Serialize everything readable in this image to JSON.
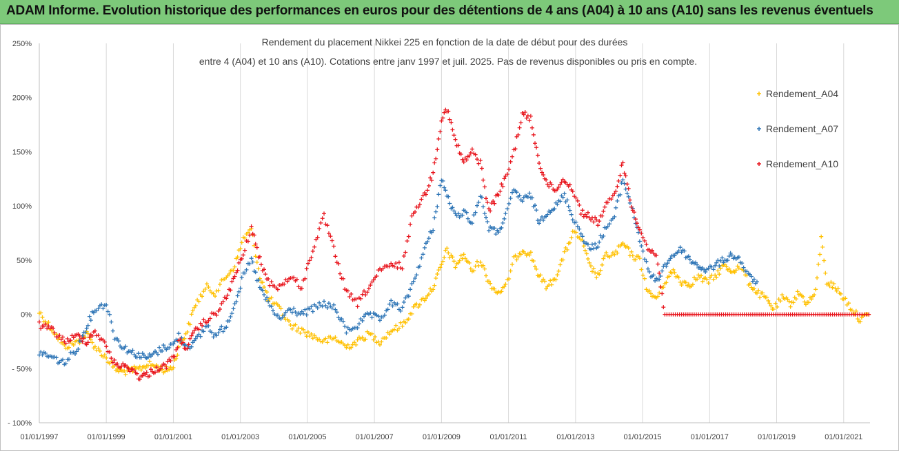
{
  "header": {
    "title": "ADAM Informe. Evolution historique des performances en euros pour des détentions de 4 ans (A04) à 10 ans (A10) sans les revenus éventuels"
  },
  "colors": {
    "header_bg": "#7dc97a",
    "A04": "#ffc000",
    "A07": "#2e75b6",
    "A10": "#e8141c",
    "grid": "#d9d9d9"
  },
  "chart_data": {
    "type": "scatter",
    "title_line1": "Rendement du placement Nikkei 225 en fonction de la date de début pour des durées",
    "title_line2": "entre 4 (A04) et 10 ans (A10). Cotations entre janv 1997 et juil. 2025. Pas de revenus disponibles ou pris en compte.",
    "xlabel": "",
    "ylabel": "",
    "xlim": [
      "1997-01-01",
      "2021-10-15"
    ],
    "ylim": [
      -100,
      250
    ],
    "x_ticks": [
      "01/01/1997",
      "01/01/1999",
      "01/01/2001",
      "01/01/2003",
      "01/01/2005",
      "01/01/2007",
      "01/01/2009",
      "01/01/2011",
      "01/01/2013",
      "01/01/2015",
      "01/01/2017",
      "01/01/2019",
      "01/01/2021"
    ],
    "y_ticks": [
      "- 100%",
      "- 50%",
      "0%",
      "50%",
      "100%",
      "150%",
      "200%",
      "250%"
    ],
    "y_tick_values": [
      -100,
      -50,
      0,
      50,
      100,
      150,
      200,
      250
    ],
    "grid": "vertical gridlines",
    "legend": "right",
    "marker": "+",
    "series": [
      {
        "name": "Rendement_A04",
        "color": "#ffc000",
        "points": [
          [
            "1997-01-01",
            2
          ],
          [
            "1997-06-01",
            -15
          ],
          [
            "1997-10-01",
            -30
          ],
          [
            "1998-03-01",
            -25
          ],
          [
            "1998-06-01",
            -18
          ],
          [
            "1998-09-01",
            -30
          ],
          [
            "1999-01-01",
            -40
          ],
          [
            "1999-04-01",
            -50
          ],
          [
            "1999-07-01",
            -53
          ],
          [
            "1999-10-01",
            -52
          ],
          [
            "2000-01-01",
            -50
          ],
          [
            "2000-04-01",
            -46
          ],
          [
            "2000-07-01",
            -48
          ],
          [
            "2000-10-01",
            -52
          ],
          [
            "2001-01-01",
            -48
          ],
          [
            "2001-03-01",
            -30
          ],
          [
            "2001-06-01",
            -15
          ],
          [
            "2001-09-01",
            10
          ],
          [
            "2002-01-01",
            25
          ],
          [
            "2002-04-01",
            20
          ],
          [
            "2002-08-01",
            35
          ],
          [
            "2002-11-01",
            45
          ],
          [
            "2003-02-01",
            70
          ],
          [
            "2003-05-01",
            78
          ],
          [
            "2003-08-01",
            35
          ],
          [
            "2003-11-01",
            15
          ],
          [
            "2004-03-01",
            5
          ],
          [
            "2004-07-01",
            -10
          ],
          [
            "2004-11-01",
            -15
          ],
          [
            "2005-03-01",
            -20
          ],
          [
            "2005-07-01",
            -25
          ],
          [
            "2005-11-01",
            -22
          ],
          [
            "2006-03-01",
            -30
          ],
          [
            "2006-07-01",
            -25
          ],
          [
            "2006-11-01",
            -18
          ],
          [
            "2007-03-01",
            -25
          ],
          [
            "2007-07-01",
            -15
          ],
          [
            "2007-11-01",
            -10
          ],
          [
            "2008-03-01",
            5
          ],
          [
            "2008-07-01",
            15
          ],
          [
            "2008-10-01",
            25
          ],
          [
            "2009-01-01",
            45
          ],
          [
            "2009-03-01",
            60
          ],
          [
            "2009-06-01",
            45
          ],
          [
            "2009-09-01",
            55
          ],
          [
            "2009-12-01",
            40
          ],
          [
            "2010-03-01",
            50
          ],
          [
            "2010-06-01",
            30
          ],
          [
            "2010-09-01",
            20
          ],
          [
            "2010-12-01",
            25
          ],
          [
            "2011-03-01",
            50
          ],
          [
            "2011-06-01",
            60
          ],
          [
            "2011-09-01",
            55
          ],
          [
            "2011-12-01",
            35
          ],
          [
            "2012-03-01",
            25
          ],
          [
            "2012-06-01",
            35
          ],
          [
            "2012-09-01",
            55
          ],
          [
            "2012-12-01",
            75
          ],
          [
            "2013-03-01",
            70
          ],
          [
            "2013-06-01",
            45
          ],
          [
            "2013-09-01",
            35
          ],
          [
            "2013-12-01",
            55
          ],
          [
            "2014-03-01",
            55
          ],
          [
            "2014-06-01",
            65
          ],
          [
            "2014-09-01",
            55
          ],
          [
            "2014-12-01",
            50
          ],
          [
            "2015-03-01",
            20
          ],
          [
            "2015-06-01",
            15
          ],
          [
            "2015-09-01",
            30
          ],
          [
            "2015-12-01",
            40
          ],
          [
            "2016-03-01",
            30
          ],
          [
            "2016-06-01",
            28
          ],
          [
            "2016-09-01",
            35
          ],
          [
            "2016-12-01",
            30
          ],
          [
            "2017-03-01",
            35
          ],
          [
            "2017-06-01",
            45
          ],
          [
            "2017-09-01",
            40
          ],
          [
            "2017-12-01",
            45
          ],
          [
            "2018-03-01",
            30
          ],
          [
            "2018-06-01",
            20
          ],
          [
            "2018-09-01",
            15
          ],
          [
            "2018-12-01",
            5
          ],
          [
            "2019-03-01",
            15
          ],
          [
            "2019-06-01",
            10
          ],
          [
            "2019-09-01",
            20
          ],
          [
            "2019-12-01",
            10
          ],
          [
            "2020-03-01",
            20
          ],
          [
            "2020-05-01",
            70
          ],
          [
            "2020-07-01",
            30
          ],
          [
            "2020-10-01",
            25
          ],
          [
            "2021-01-01",
            15
          ],
          [
            "2021-04-01",
            5
          ],
          [
            "2021-07-01",
            -5
          ],
          [
            "2021-10-01",
            0
          ]
        ]
      },
      {
        "name": "Rendement_A07",
        "color": "#2e75b6",
        "points": [
          [
            "1997-01-01",
            -35
          ],
          [
            "1997-06-01",
            -40
          ],
          [
            "1997-10-01",
            -45
          ],
          [
            "1998-03-01",
            -30
          ],
          [
            "1998-06-01",
            -10
          ],
          [
            "1998-09-01",
            5
          ],
          [
            "1999-01-01",
            10
          ],
          [
            "1999-04-01",
            -20
          ],
          [
            "1999-07-01",
            -30
          ],
          [
            "1999-10-01",
            -35
          ],
          [
            "2000-01-01",
            -38
          ],
          [
            "2000-04-01",
            -40
          ],
          [
            "2000-07-01",
            -35
          ],
          [
            "2000-10-01",
            -30
          ],
          [
            "2001-01-01",
            -28
          ],
          [
            "2001-03-01",
            -20
          ],
          [
            "2001-06-01",
            -30
          ],
          [
            "2001-09-01",
            -25
          ],
          [
            "2002-01-01",
            -10
          ],
          [
            "2002-04-01",
            -20
          ],
          [
            "2002-08-01",
            -10
          ],
          [
            "2002-11-01",
            10
          ],
          [
            "2003-02-01",
            35
          ],
          [
            "2003-05-01",
            50
          ],
          [
            "2003-08-01",
            25
          ],
          [
            "2003-11-01",
            10
          ],
          [
            "2004-03-01",
            -5
          ],
          [
            "2004-07-01",
            5
          ],
          [
            "2004-11-01",
            0
          ],
          [
            "2005-03-01",
            5
          ],
          [
            "2005-07-01",
            10
          ],
          [
            "2005-11-01",
            5
          ],
          [
            "2006-03-01",
            -15
          ],
          [
            "2006-07-01",
            -10
          ],
          [
            "2006-11-01",
            0
          ],
          [
            "2007-03-01",
            -5
          ],
          [
            "2007-07-01",
            10
          ],
          [
            "2007-11-01",
            5
          ],
          [
            "2008-03-01",
            30
          ],
          [
            "2008-07-01",
            60
          ],
          [
            "2008-10-01",
            80
          ],
          [
            "2009-01-01",
            125
          ],
          [
            "2009-03-01",
            110
          ],
          [
            "2009-06-01",
            90
          ],
          [
            "2009-09-01",
            95
          ],
          [
            "2009-12-01",
            85
          ],
          [
            "2010-03-01",
            110
          ],
          [
            "2010-06-01",
            80
          ],
          [
            "2010-09-01",
            75
          ],
          [
            "2010-12-01",
            90
          ],
          [
            "2011-03-01",
            115
          ],
          [
            "2011-06-01",
            105
          ],
          [
            "2011-09-01",
            110
          ],
          [
            "2011-12-01",
            85
          ],
          [
            "2012-03-01",
            95
          ],
          [
            "2012-06-01",
            100
          ],
          [
            "2012-09-01",
            110
          ],
          [
            "2012-12-01",
            90
          ],
          [
            "2013-03-01",
            75
          ],
          [
            "2013-06-01",
            60
          ],
          [
            "2013-09-01",
            65
          ],
          [
            "2013-12-01",
            80
          ],
          [
            "2014-03-01",
            90
          ],
          [
            "2014-06-01",
            125
          ],
          [
            "2014-09-01",
            100
          ],
          [
            "2014-12-01",
            70
          ],
          [
            "2015-03-01",
            40
          ],
          [
            "2015-06-01",
            30
          ],
          [
            "2015-09-01",
            45
          ],
          [
            "2015-12-01",
            55
          ],
          [
            "2016-03-01",
            60
          ],
          [
            "2016-06-01",
            50
          ],
          [
            "2016-09-01",
            45
          ],
          [
            "2016-12-01",
            40
          ],
          [
            "2017-03-01",
            45
          ],
          [
            "2017-06-01",
            50
          ],
          [
            "2017-09-01",
            55
          ],
          [
            "2017-12-01",
            50
          ],
          [
            "2018-03-01",
            35
          ],
          [
            "2018-06-01",
            30
          ]
        ]
      },
      {
        "name": "Rendement_A10",
        "color": "#e8141c",
        "points": [
          [
            "1997-01-01",
            -10
          ],
          [
            "1997-06-01",
            -15
          ],
          [
            "1997-10-01",
            -25
          ],
          [
            "1998-03-01",
            -20
          ],
          [
            "1998-06-01",
            -25
          ],
          [
            "1998-09-01",
            -15
          ],
          [
            "1999-01-01",
            -30
          ],
          [
            "1999-04-01",
            -45
          ],
          [
            "1999-07-01",
            -48
          ],
          [
            "1999-10-01",
            -50
          ],
          [
            "2000-01-01",
            -58
          ],
          [
            "2000-04-01",
            -55
          ],
          [
            "2000-07-01",
            -50
          ],
          [
            "2000-10-01",
            -48
          ],
          [
            "2001-01-01",
            -40
          ],
          [
            "2001-03-01",
            -25
          ],
          [
            "2001-06-01",
            -30
          ],
          [
            "2001-09-01",
            -15
          ],
          [
            "2002-01-01",
            -5
          ],
          [
            "2002-04-01",
            0
          ],
          [
            "2002-08-01",
            15
          ],
          [
            "2002-11-01",
            35
          ],
          [
            "2003-02-01",
            55
          ],
          [
            "2003-05-01",
            80
          ],
          [
            "2003-08-01",
            50
          ],
          [
            "2003-11-01",
            30
          ],
          [
            "2004-03-01",
            25
          ],
          [
            "2004-07-01",
            35
          ],
          [
            "2004-11-01",
            25
          ],
          [
            "2005-03-01",
            60
          ],
          [
            "2005-07-01",
            90
          ],
          [
            "2005-11-01",
            55
          ],
          [
            "2006-03-01",
            20
          ],
          [
            "2006-07-01",
            10
          ],
          [
            "2006-11-01",
            25
          ],
          [
            "2007-03-01",
            40
          ],
          [
            "2007-07-01",
            45
          ],
          [
            "2007-11-01",
            45
          ],
          [
            "2008-03-01",
            95
          ],
          [
            "2008-07-01",
            110
          ],
          [
            "2008-10-01",
            130
          ],
          [
            "2009-01-01",
            180
          ],
          [
            "2009-03-01",
            190
          ],
          [
            "2009-06-01",
            160
          ],
          [
            "2009-09-01",
            140
          ],
          [
            "2009-12-01",
            150
          ],
          [
            "2010-03-01",
            140
          ],
          [
            "2010-06-01",
            95
          ],
          [
            "2010-09-01",
            110
          ],
          [
            "2010-12-01",
            125
          ],
          [
            "2011-03-01",
            150
          ],
          [
            "2011-06-01",
            185
          ],
          [
            "2011-09-01",
            180
          ],
          [
            "2011-12-01",
            140
          ],
          [
            "2012-03-01",
            120
          ],
          [
            "2012-06-01",
            115
          ],
          [
            "2012-09-01",
            125
          ],
          [
            "2012-12-01",
            115
          ],
          [
            "2013-03-01",
            95
          ],
          [
            "2013-06-01",
            90
          ],
          [
            "2013-09-01",
            85
          ],
          [
            "2013-12-01",
            100
          ],
          [
            "2014-03-01",
            110
          ],
          [
            "2014-06-01",
            140
          ],
          [
            "2014-09-01",
            100
          ],
          [
            "2014-12-01",
            80
          ],
          [
            "2015-03-01",
            60
          ],
          [
            "2015-06-01",
            55
          ],
          [
            "2015-09-01",
            0
          ],
          [
            "2016-06-01",
            0
          ],
          [
            "2017-06-01",
            0
          ],
          [
            "2018-06-01",
            0
          ],
          [
            "2019-06-01",
            0
          ],
          [
            "2020-06-01",
            0
          ],
          [
            "2021-06-01",
            0
          ],
          [
            "2021-10-01",
            0
          ]
        ]
      }
    ]
  }
}
